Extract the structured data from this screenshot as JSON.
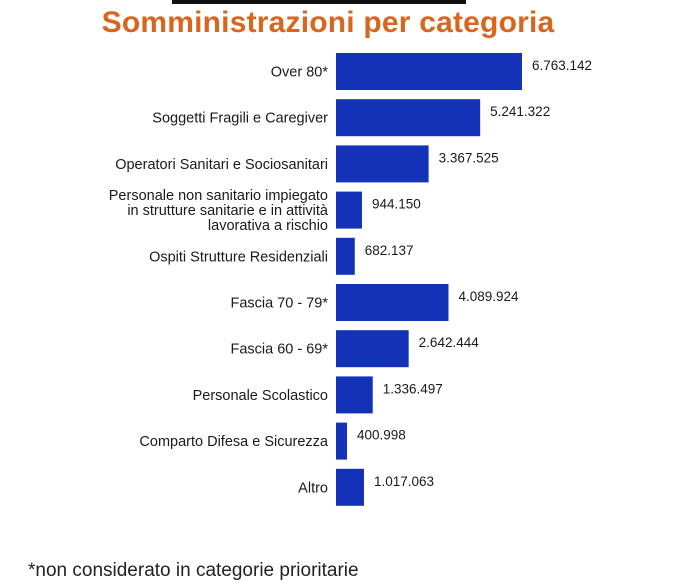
{
  "header": {
    "title": "Somministrazioni per categoria"
  },
  "footnote": "*non considerato in categorie prioritarie",
  "colors": {
    "bar": "#1432b8",
    "title": "#d9661f"
  },
  "chart_data": {
    "type": "bar",
    "orientation": "horizontal",
    "title": "Somministrazioni per categoria",
    "xlabel": "",
    "ylabel": "",
    "xlim": [
      0,
      6763142
    ],
    "grid": false,
    "legend": "none",
    "categories": [
      [
        "Over 80*"
      ],
      [
        "Soggetti Fragili e Caregiver"
      ],
      [
        "Operatori Sanitari e Sociosanitari"
      ],
      [
        "Personale non sanitario impiegato",
        "in strutture sanitarie e in attività",
        "lavorativa a rischio"
      ],
      [
        "Ospiti Strutture Residenziali"
      ],
      [
        "Fascia 70 - 79*"
      ],
      [
        "Fascia 60 - 69*"
      ],
      [
        "Personale Scolastico"
      ],
      [
        "Comparto Difesa e Sicurezza"
      ],
      [
        "Altro"
      ]
    ],
    "values": [
      6763142,
      5241322,
      3367525,
      944150,
      682137,
      4089924,
      2642444,
      1336497,
      400998,
      1017063
    ],
    "value_labels": [
      "6.763.142",
      "5.241.322",
      "3.367.525",
      "944.150",
      "682.137",
      "4.089.924",
      "2.642.444",
      "1.336.497",
      "400.998",
      "1.017.063"
    ]
  }
}
